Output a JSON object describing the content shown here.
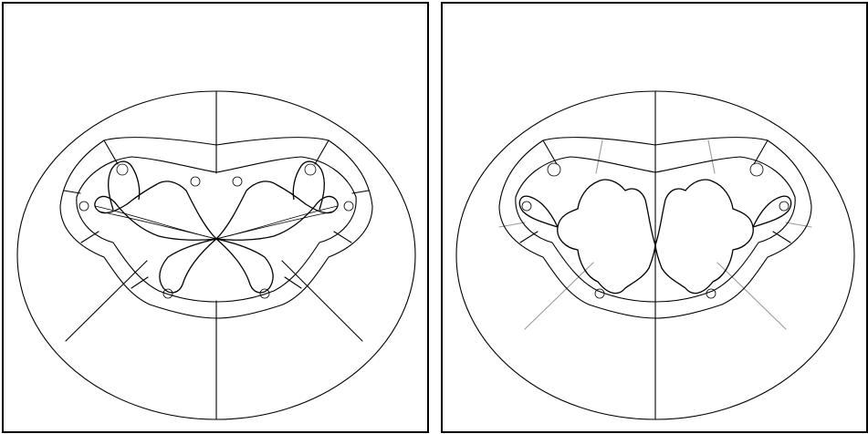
{
  "panels": [
    {
      "id": "left",
      "variant": "julia-with-dense-rays",
      "ray_color": "#000000"
    },
    {
      "id": "right",
      "variant": "julia-with-gray-rays",
      "ray_color": "#9a9a9a"
    }
  ],
  "colors": {
    "line": "#000000",
    "background": "#ffffff",
    "gray_ray": "#9a9a9a"
  }
}
